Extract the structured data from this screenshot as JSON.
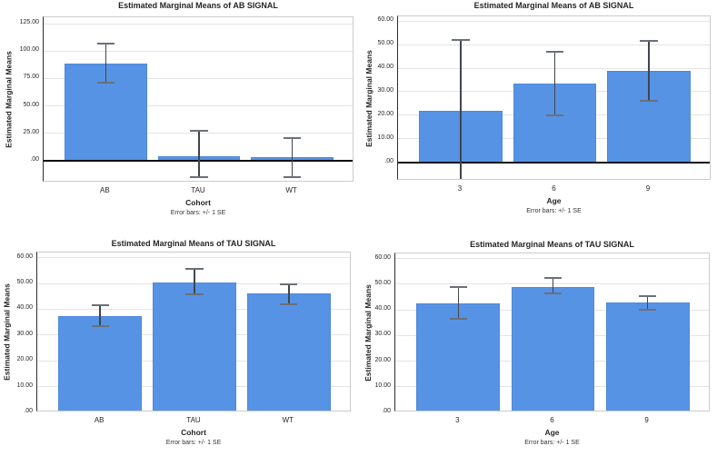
{
  "figure": {
    "background": "#ffffff",
    "grid": "horizontal",
    "legend": "none"
  },
  "styles": {
    "bar_color": "#5793E4",
    "bar_border": "#4E89D9",
    "error_line_color": "#40454D",
    "error_cap_color": "#6B7077",
    "grid_color": "#E4E4E4",
    "frame_color": "#CBCBCB",
    "y_axis_color": "#2F2F2F",
    "zero_line_color": "#0B0B0B",
    "text_color": "#262626"
  },
  "chart_data": [
    {
      "type": "bar",
      "title": "Estimated Marginal Means of AB SIGNAL",
      "ylabel": "Estimated Marginal Means",
      "xlabel": "Cohort",
      "caption": "Error bars: +/- 1 SE",
      "categories": [
        "AB",
        "TAU",
        "WT"
      ],
      "values": [
        88.5,
        4,
        3
      ],
      "error_low": [
        71,
        -15,
        -15
      ],
      "error_high": [
        107,
        27.5,
        21
      ],
      "ylim": [
        -20,
        131
      ],
      "yticks": [
        0,
        25,
        50,
        75,
        100,
        125
      ],
      "ytick_labels": [
        ".00",
        "25.00",
        "50.00",
        "75.00",
        "100.00",
        "125.00"
      ]
    },
    {
      "type": "bar",
      "title": "Estimated Marginal Means of AB SIGNAL",
      "ylabel": "Estimated Marginal Means",
      "xlabel": "Age",
      "caption": "Error bars: +/- 1 SE",
      "categories": [
        "3",
        "6",
        "9"
      ],
      "values": [
        22,
        33.5,
        39
      ],
      "error_low": [
        -7.8,
        20,
        26
      ],
      "error_high": [
        52,
        47,
        51.5
      ],
      "ylim": [
        -7.8,
        62
      ],
      "yticks": [
        0,
        10,
        20,
        30,
        40,
        50,
        60
      ],
      "ytick_labels": [
        ".00",
        "10.00",
        "20.00",
        "30.00",
        "40.00",
        "50.00",
        "60.00"
      ]
    },
    {
      "type": "bar",
      "title": "Estimated Marginal Means of TAU SIGNAL",
      "ylabel": "Estimated Marginal Means",
      "xlabel": "Cohort",
      "caption": "Error bars: +/- 1 SE",
      "categories": [
        "AB",
        "TAU",
        "WT"
      ],
      "values": [
        37.5,
        50.5,
        46
      ],
      "error_low": [
        33.5,
        45.8,
        42
      ],
      "error_high": [
        41.5,
        55.5,
        49.8
      ],
      "ylim": [
        0,
        62
      ],
      "yticks": [
        0,
        10,
        20,
        30,
        40,
        50,
        60
      ],
      "ytick_labels": [
        ".00",
        "10.00",
        "20.00",
        "30.00",
        "40.00",
        "50.00",
        "60.00"
      ]
    },
    {
      "type": "bar",
      "title": "Estimated Marginal Means of TAU SIGNAL",
      "ylabel": "Estimated Marginal Means",
      "xlabel": "Age",
      "caption": "Error bars: +/- 1 SE",
      "categories": [
        "3",
        "6",
        "9"
      ],
      "values": [
        42.5,
        49,
        42.7
      ],
      "error_low": [
        36.5,
        46.5,
        40
      ],
      "error_high": [
        49,
        52.3,
        45.5
      ],
      "ylim": [
        0,
        62
      ],
      "yticks": [
        0,
        10,
        20,
        30,
        40,
        50,
        60
      ],
      "ytick_labels": [
        ".00",
        "10.00",
        "20.00",
        "30.00",
        "40.00",
        "50.00",
        "60.00"
      ]
    }
  ]
}
